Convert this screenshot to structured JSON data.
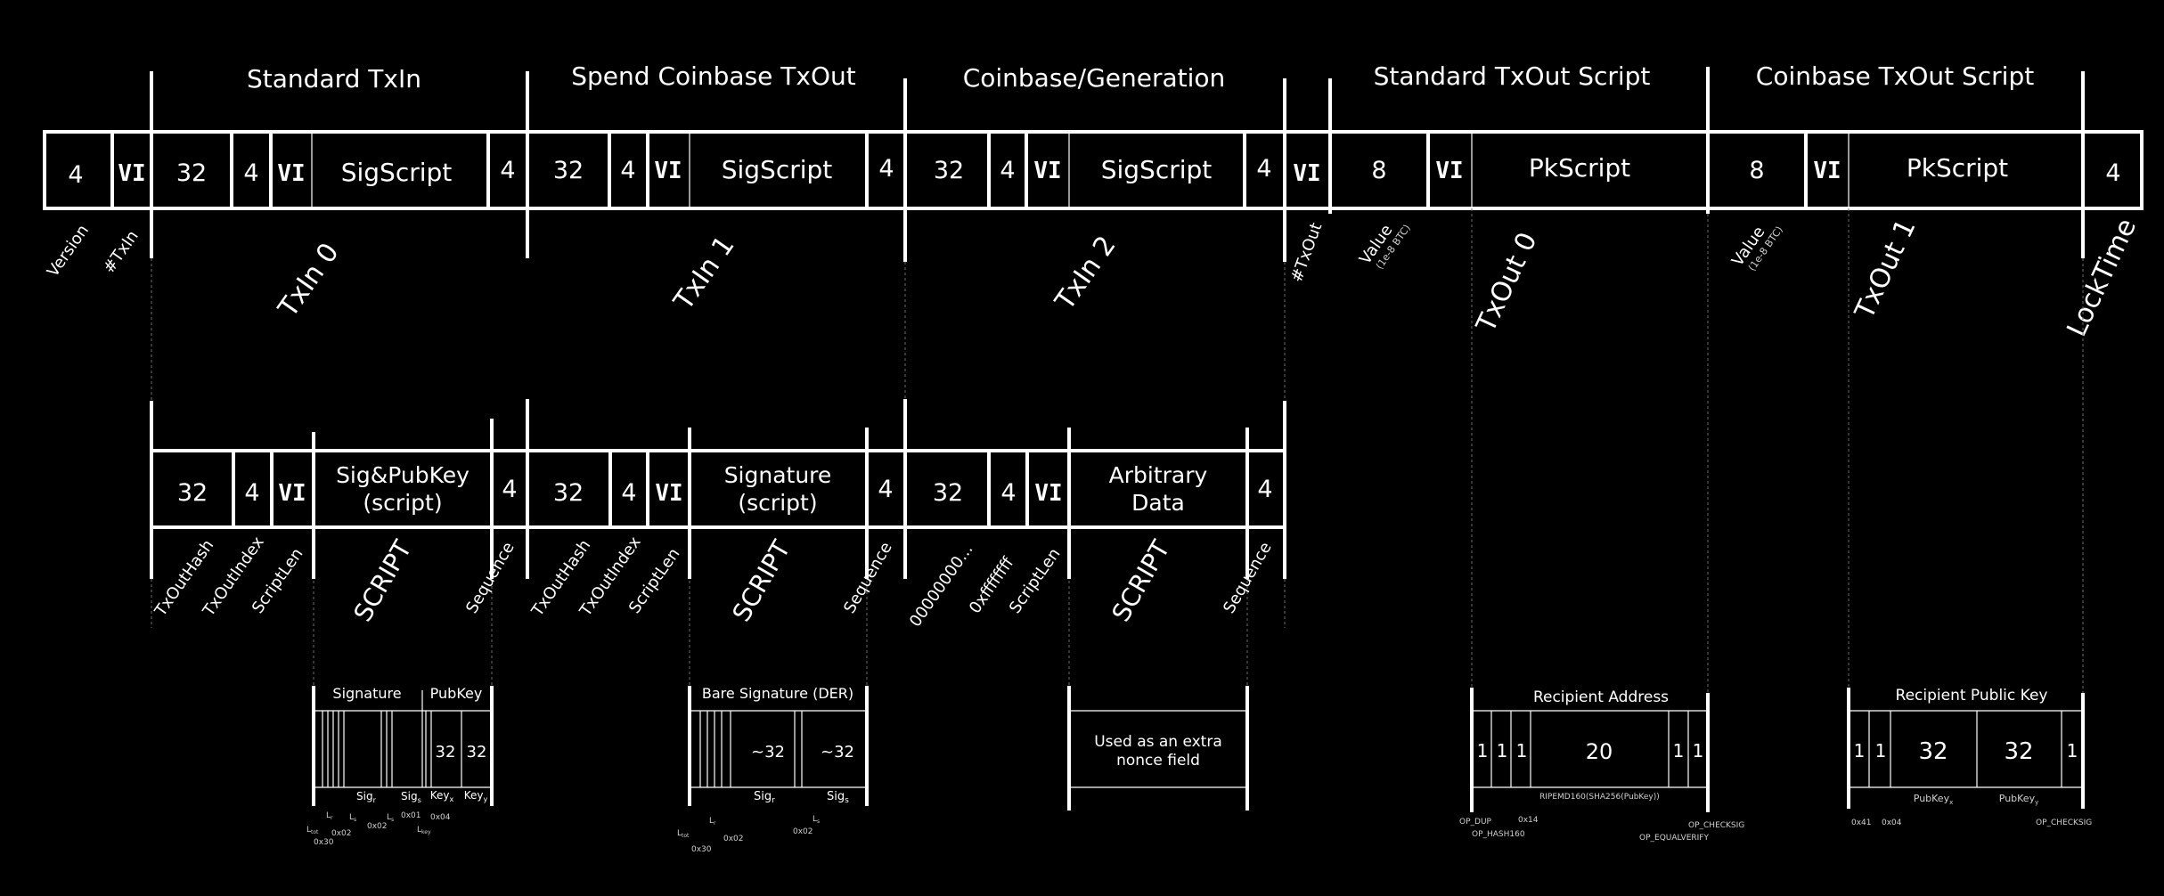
{
  "sections": {
    "standard_txin": "Standard TxIn",
    "spend_coinbase_txout": "Spend Coinbase TxOut",
    "coinbase_generation": "Coinbase/Generation",
    "standard_txout_script": "Standard TxOut Script",
    "coinbase_txout_script": "Coinbase TxOut Script"
  },
  "top_row": {
    "version_size": "4",
    "vi": "VI",
    "txin_hash_size": "32",
    "txin_index_size": "4",
    "sigscript": "SigScript",
    "sequence_size": "4",
    "value_size": "8",
    "pkscript": "PkScript",
    "locktime_size": "4"
  },
  "top_labels": {
    "version": "Version",
    "txin_count": "#TxIn",
    "txin0": "TxIn 0",
    "txin1": "TxIn 1",
    "txin2": "TxIn 2",
    "txout_count": "#TxOut",
    "value": "Value",
    "value_unit": "(1e-8 BTC)",
    "txout0": "TxOut 0",
    "txout1": "TxOut 1",
    "locktime": "LockTime"
  },
  "mid_row": {
    "hash_size": "32",
    "index_size": "4",
    "vi": "VI",
    "sig_pubkey_line1": "Sig&PubKey",
    "sig_pubkey_line2": "(script)",
    "signature_line1": "Signature",
    "signature_line2": "(script)",
    "arbitrary_line1": "Arbitrary",
    "arbitrary_line2": "Data",
    "sequence_size": "4"
  },
  "mid_labels": {
    "txout_hash": "TxOutHash",
    "txout_index": "TxOutIndex",
    "script_len": "ScriptLen",
    "script": "SCRIPT",
    "sequence": "Sequence",
    "zero_hash": "00000000...",
    "ffff": "0xffffffff"
  },
  "detail": {
    "signature_header": "Signature",
    "pubkey_header": "PubKey",
    "key32": "32",
    "sig_r": "Sig",
    "sig_s": "Sig",
    "sub_r": "r",
    "sub_s": "s",
    "key_x": "Key",
    "key_y": "Key",
    "sub_x": "x",
    "sub_y": "y",
    "l_tot": "L",
    "sub_tot": "tot",
    "l_r": "L",
    "l_s": "L",
    "l_key": "L",
    "sub_key": "key",
    "hex_30": "0x30",
    "hex_02": "0x02",
    "hex_01": "0x01",
    "hex_04": "0x04",
    "hex_41": "0x41",
    "hex_14": "0x14",
    "bare_sig_header": "Bare Signature (DER)",
    "approx32": "~32",
    "extra_nonce_line1": "Used as an extra",
    "extra_nonce_line2": "nonce field",
    "recipient_address_header": "Recipient Address",
    "one": "1",
    "twenty": "20",
    "op_dup": "OP_DUP",
    "op_hash160": "OP_HASH160",
    "ripemd": "RIPEMD160(SHA256(PubKey))",
    "op_equalverify": "OP_EQUALVERIFY",
    "op_checksig": "OP_CHECKSIG",
    "recipient_pubkey_header": "Recipient Public Key",
    "pubkey_x": "PubKey",
    "pubkey_y": "PubKey"
  }
}
